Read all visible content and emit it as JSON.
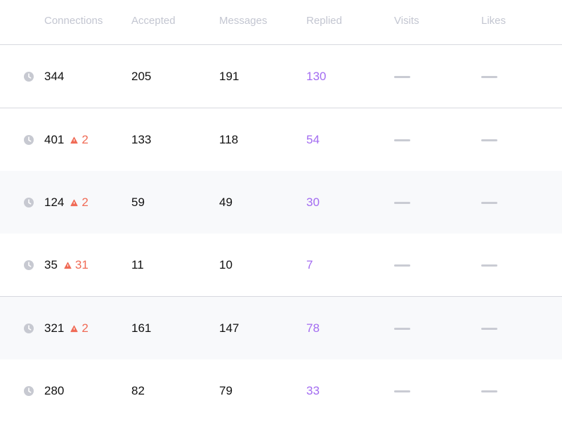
{
  "header": {
    "connections": "Connections",
    "accepted": "Accepted",
    "messages": "Messages",
    "replied": "Replied",
    "visits": "Visits",
    "likes": "Likes"
  },
  "colors": {
    "replied": "#a36cf1",
    "warning": "#f06b56",
    "muted": "#c3c6d1",
    "divider": "#d7d9df"
  },
  "rows": [
    {
      "connections": "344",
      "warning": "",
      "accepted": "205",
      "messages": "191",
      "replied": "130",
      "visits": "—",
      "likes": "—"
    },
    {
      "connections": "401",
      "warning": "2",
      "accepted": "133",
      "messages": "118",
      "replied": "54",
      "visits": "—",
      "likes": "—"
    },
    {
      "connections": "124",
      "warning": "2",
      "accepted": "59",
      "messages": "49",
      "replied": "30",
      "visits": "—",
      "likes": "—"
    },
    {
      "connections": "35",
      "warning": "31",
      "accepted": "11",
      "messages": "10",
      "replied": "7",
      "visits": "—",
      "likes": "—"
    },
    {
      "connections": "321",
      "warning": "2",
      "accepted": "161",
      "messages": "147",
      "replied": "78",
      "visits": "—",
      "likes": "—"
    },
    {
      "connections": "280",
      "warning": "",
      "accepted": "82",
      "messages": "79",
      "replied": "33",
      "visits": "—",
      "likes": "—"
    }
  ]
}
